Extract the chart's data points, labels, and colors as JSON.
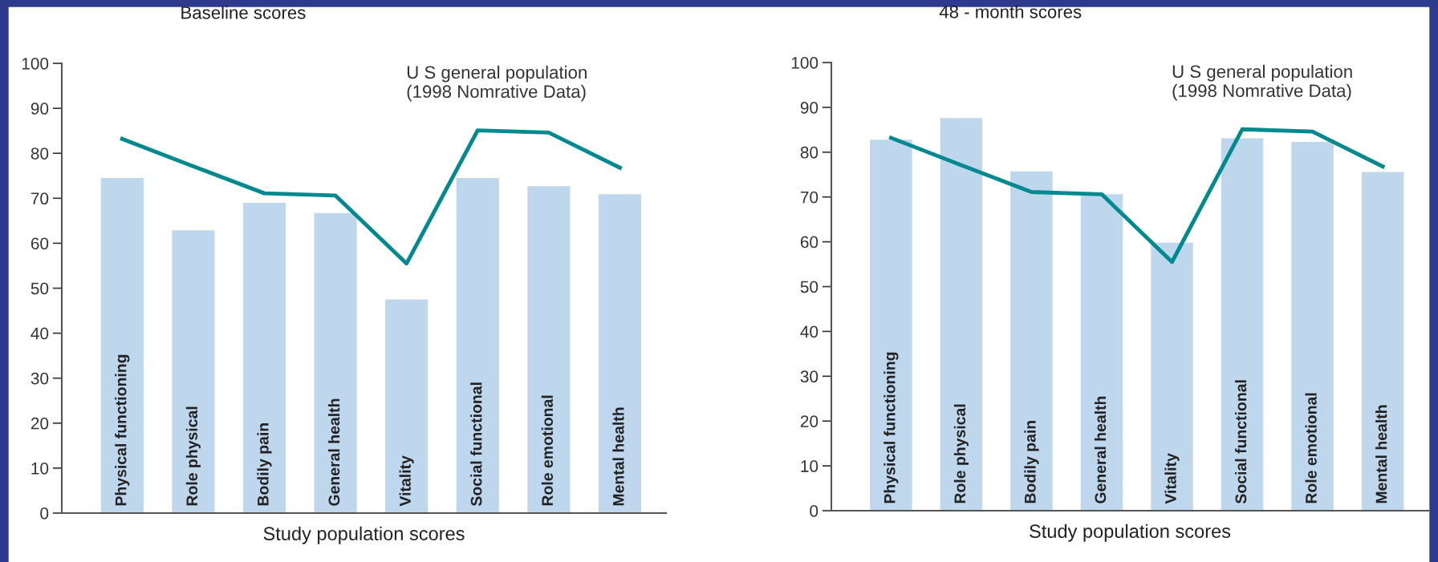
{
  "chart_data": [
    {
      "type": "bar",
      "title": "Baseline scores",
      "xlabel": "Study population scores",
      "categories": [
        "Physical functioning",
        "Role physical",
        "Bodily pain",
        "General health",
        "Vitality",
        "Social functional",
        "Role emotional",
        "Mental health"
      ],
      "series": [
        {
          "color": "#bfd7ec",
          "values": [
            74.5,
            62.9,
            69,
            66.7,
            47.5,
            74.5,
            72.7,
            70.9
          ]
        },
        {
          "type": "line",
          "name": "U S general population\n(1998 Nomrative Data)",
          "color": "#00898f",
          "values": [
            83.2,
            77.1,
            71.1,
            70.6,
            55.5,
            85.1,
            84.6,
            76.8
          ]
        }
      ],
      "ylim": [
        0,
        100
      ],
      "yticks": [
        0,
        10,
        20,
        30,
        40,
        50,
        60,
        70,
        80,
        90,
        100
      ],
      "grid": false,
      "marker": "none",
      "line_style": "solid"
    },
    {
      "type": "bar",
      "title": "48 - month scores",
      "xlabel": "Study population scores",
      "categories": [
        "Physical functioning",
        "Role physical",
        "Bodily pain",
        "General health",
        "Vitality",
        "Social functional",
        "Role emotional",
        "Mental health"
      ],
      "series": [
        {
          "color": "#bfd7ec",
          "values": [
            82.8,
            87.6,
            75.7,
            70.6,
            59.8,
            83.1,
            82.3,
            75.6
          ]
        },
        {
          "type": "line",
          "name": "U S general population\n(1998 Nomrative Data)",
          "color": "#00898f",
          "values": [
            83.2,
            77.1,
            71.1,
            70.6,
            55.5,
            85.1,
            84.6,
            76.8
          ]
        }
      ],
      "ylim": [
        0,
        100
      ],
      "yticks": [
        0,
        10,
        20,
        30,
        40,
        50,
        60,
        70,
        80,
        90,
        100
      ],
      "grid": false,
      "marker": "none",
      "line_style": "solid"
    }
  ]
}
